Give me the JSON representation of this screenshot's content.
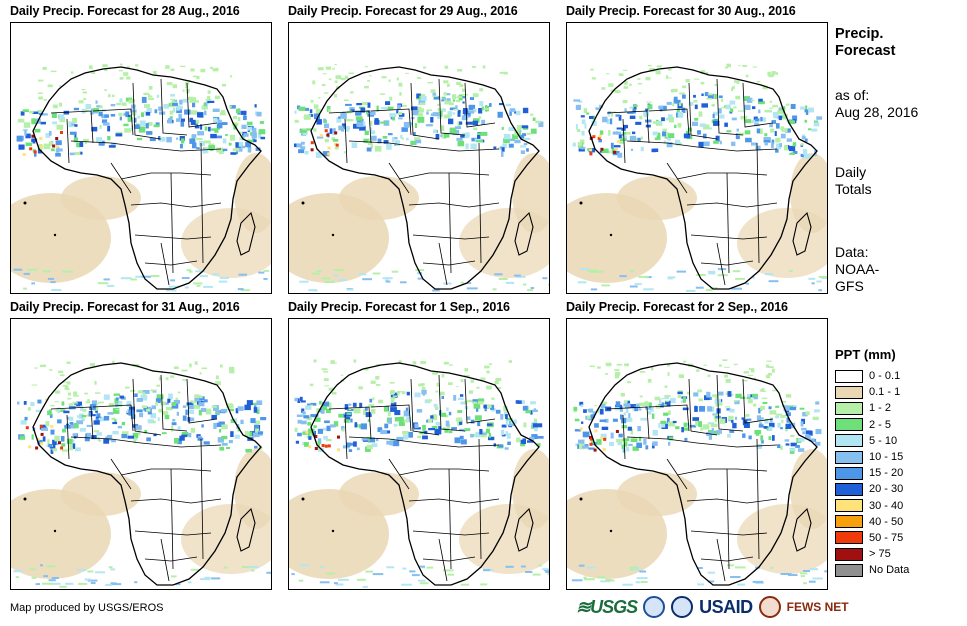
{
  "panels": [
    {
      "title": "Daily Precip. Forecast for 28 Aug., 2016"
    },
    {
      "title": "Daily Precip. Forecast for 29 Aug., 2016"
    },
    {
      "title": "Daily Precip. Forecast for 30 Aug., 2016"
    },
    {
      "title": "Daily Precip. Forecast for 31 Aug., 2016"
    },
    {
      "title": "Daily Precip. Forecast for 1 Sep., 2016"
    },
    {
      "title": "Daily Precip. Forecast for 2 Sep., 2016"
    }
  ],
  "sidebar": {
    "heading_line1": "Precip.",
    "heading_line2": "Forecast",
    "asof_line1": "as of:",
    "asof_line2": "Aug 28, 2016",
    "totals_line1": "Daily",
    "totals_line2": "Totals",
    "data_line1": "Data:",
    "data_line2": "NOAA-",
    "data_line3": "GFS"
  },
  "legend": {
    "title": "PPT (mm)",
    "items": [
      {
        "label": "0 - 0.1",
        "color": "#ffffff"
      },
      {
        "label": "0.1 - 1",
        "color": "#ead7b4"
      },
      {
        "label": "1 - 2",
        "color": "#b6f0a8"
      },
      {
        "label": "2 - 5",
        "color": "#6ee07a"
      },
      {
        "label": "5 - 10",
        "color": "#b2e6f2"
      },
      {
        "label": "10 - 15",
        "color": "#86bff0"
      },
      {
        "label": "15 - 20",
        "color": "#4e96e8"
      },
      {
        "label": "20 - 30",
        "color": "#1f5fd8"
      },
      {
        "label": "30 - 40",
        "color": "#ffe27a"
      },
      {
        "label": "40 - 50",
        "color": "#f7a10e"
      },
      {
        "label": "50 - 75",
        "color": "#f03a0c"
      },
      {
        "label": "> 75",
        "color": "#a01010"
      },
      {
        "label": "No Data",
        "color": "#909090"
      }
    ]
  },
  "footer": {
    "credit": "Map produced by USGS/EROS"
  },
  "logos": {
    "usgs": "≋USGS",
    "usaid": "USAID",
    "fews": "FEWS NET"
  }
}
